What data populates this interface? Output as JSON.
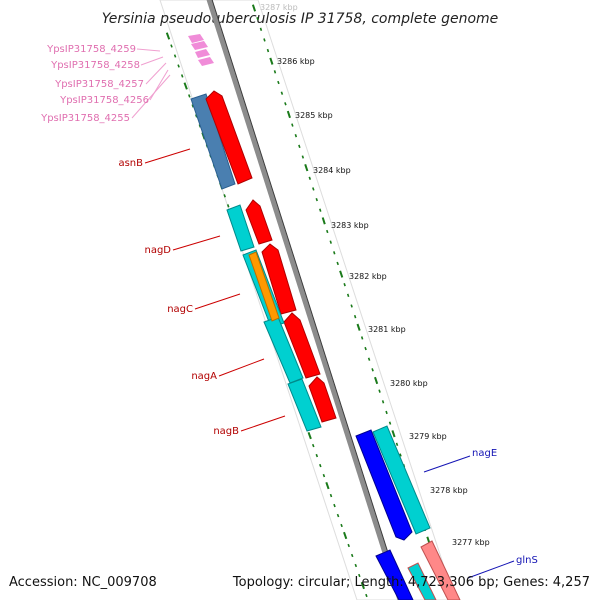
{
  "title": "Yersinia pseudotuberculosis IP 31758, complete genome",
  "footer": {
    "accession": "Accession: NC_009708",
    "summary": "Topology: circular; Length: 4,723,306 bp; Genes: 4,257"
  },
  "kbp_labels": [
    "3287 kbp",
    "3286 kbp",
    "3285 kbp",
    "3284 kbp",
    "3283 kbp",
    "3282 kbp",
    "3281 kbp",
    "3280 kbp",
    "3279 kbp",
    "3278 kbp",
    "3277 kbp"
  ],
  "gene_labels": {
    "pink": [
      "YpsIP31758_4259",
      "YpsIP31758_4258",
      "YpsIP31758_4257",
      "YpsIP31758_4256",
      "YpsIP31758_4255"
    ],
    "red": [
      "asnB",
      "nagD",
      "nagC",
      "nagA",
      "nagB"
    ],
    "blue": [
      "nagE",
      "glnS"
    ]
  },
  "colors": {
    "backbone": "#8c8c8c",
    "ticks": "#1a7a1a",
    "forward_cds": "#ff0000",
    "reverse_cds": "#00d0d0",
    "rna": "#4a7fb0",
    "blue_cds": "#0000ff",
    "orange_cds": "#ff9900",
    "pink_cds": "#ff8888",
    "pink_arrows": "#f08cd8"
  }
}
